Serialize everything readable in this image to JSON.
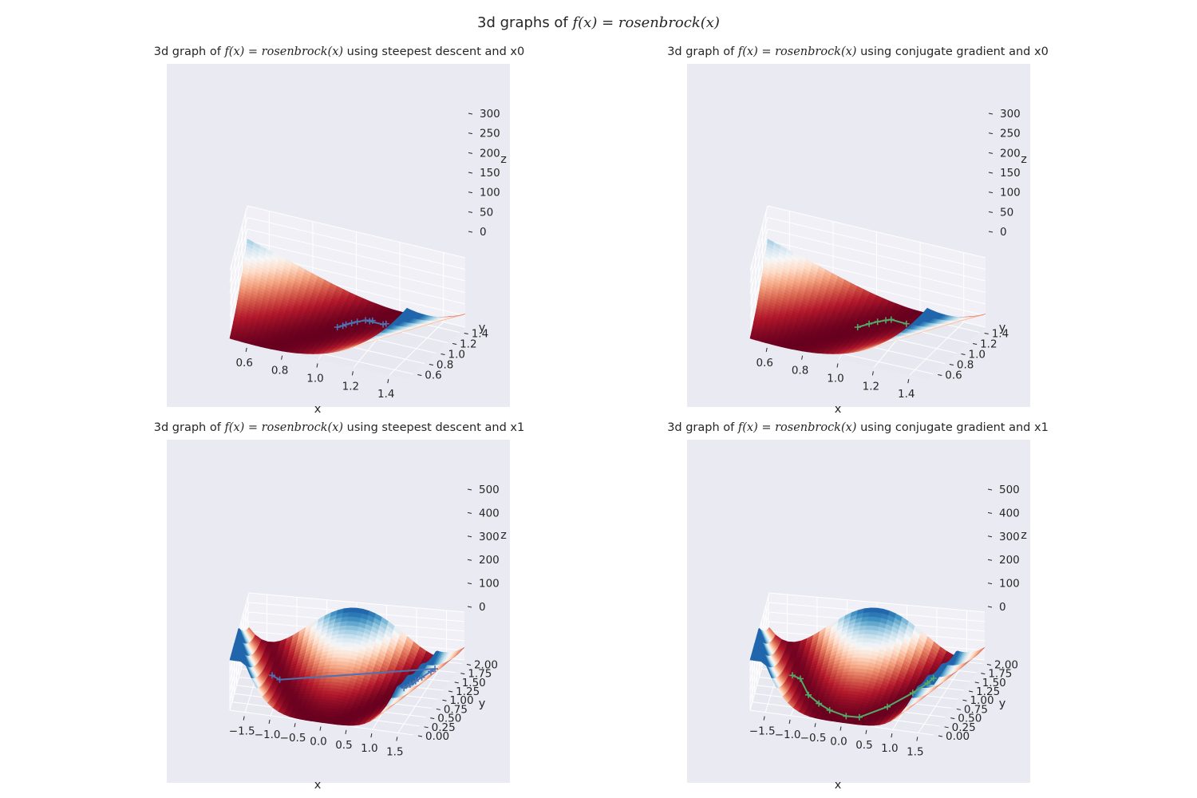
{
  "figure": {
    "title_prefix": "3d graphs of ",
    "title_math": "f(x) = rosenbrock(x)"
  },
  "chart_data": [
    {
      "type": "surface3d",
      "title_prefix": "3d graph of ",
      "title_math": "f(x) = rosenbrock(x)",
      "title_suffix": " using steepest descent and x0",
      "xlabel": "x",
      "ylabel": "y",
      "zlabel": "z",
      "xlim": [
        0.5,
        1.5
      ],
      "ylim": [
        0.5,
        1.5
      ],
      "zlim": [
        0,
        300
      ],
      "xticks": [
        "0.6",
        "0.8",
        "1.0",
        "1.2",
        "1.4"
      ],
      "yticks": [
        "0.6",
        "0.8",
        "1.0",
        "1.2",
        "1.4"
      ],
      "zticks": [
        "0",
        "50",
        "100",
        "150",
        "200",
        "250",
        "300"
      ],
      "colormap": "RdBu",
      "path_color": "#4c72b0",
      "path": [
        [
          1.2,
          1.2
        ],
        [
          1.19,
          1.18
        ],
        [
          1.12,
          1.2
        ],
        [
          1.13,
          1.22
        ],
        [
          1.1,
          1.2
        ],
        [
          1.07,
          1.15
        ],
        [
          1.05,
          1.11
        ],
        [
          1.03,
          1.07
        ],
        [
          1.02,
          1.04
        ],
        [
          1.0,
          1.0
        ]
      ]
    },
    {
      "type": "surface3d",
      "title_prefix": "3d graph of ",
      "title_math": "f(x) = rosenbrock(x)",
      "title_suffix": " using conjugate gradient and x0",
      "xlabel": "x",
      "ylabel": "y",
      "zlabel": "z",
      "xlim": [
        0.5,
        1.5
      ],
      "ylim": [
        0.5,
        1.5
      ],
      "zlim": [
        0,
        300
      ],
      "xticks": [
        "0.6",
        "0.8",
        "1.0",
        "1.2",
        "1.4"
      ],
      "yticks": [
        "0.6",
        "0.8",
        "1.0",
        "1.2",
        "1.4"
      ],
      "zticks": [
        "0",
        "50",
        "100",
        "150",
        "200",
        "250",
        "300"
      ],
      "colormap": "RdBu",
      "path_color": "#55a868",
      "path": [
        [
          1.2,
          1.2
        ],
        [
          1.12,
          1.23
        ],
        [
          1.1,
          1.2
        ],
        [
          1.07,
          1.15
        ],
        [
          1.04,
          1.09
        ],
        [
          1.0,
          1.0
        ]
      ]
    },
    {
      "type": "surface3d",
      "title_prefix": "3d graph of ",
      "title_math": "f(x) = rosenbrock(x)",
      "title_suffix": " using steepest descent and x1",
      "xlabel": "x",
      "ylabel": "y",
      "zlabel": "z",
      "xlim": [
        -1.8,
        1.8
      ],
      "ylim": [
        0,
        2.1
      ],
      "zlim": [
        0,
        500
      ],
      "xticks": [
        "−1.5",
        "−1.0",
        "−0.5",
        "0.0",
        "0.5",
        "1.0",
        "1.5"
      ],
      "yticks": [
        "0.00",
        "0.25",
        "0.50",
        "0.75",
        "1.00",
        "1.25",
        "1.50",
        "1.75",
        "2.00"
      ],
      "zticks": [
        "0",
        "100",
        "200",
        "300",
        "400",
        "500"
      ],
      "colormap": "RdBu",
      "path_color": "#4c72b0",
      "path": [
        [
          -1.2,
          1.0
        ],
        [
          -1.05,
          0.95
        ],
        [
          1.5,
          1.6
        ],
        [
          1.45,
          1.55
        ],
        [
          1.35,
          1.4
        ],
        [
          1.28,
          1.3
        ],
        [
          1.22,
          1.2
        ],
        [
          1.15,
          1.1
        ]
      ]
    },
    {
      "type": "surface3d",
      "title_prefix": "3d graph of ",
      "title_math": "f(x) = rosenbrock(x)",
      "title_suffix": " using conjugate gradient and x1",
      "xlabel": "x",
      "ylabel": "y",
      "zlabel": "z",
      "xlim": [
        -1.8,
        1.8
      ],
      "ylim": [
        0,
        2.1
      ],
      "zlim": [
        0,
        500
      ],
      "xticks": [
        "−1.5",
        "−1.0",
        "−0.5",
        "0.0",
        "0.5",
        "1.0",
        "1.5"
      ],
      "yticks": [
        "0.00",
        "0.25",
        "0.50",
        "0.75",
        "1.00",
        "1.25",
        "1.50",
        "1.75",
        "2.00"
      ],
      "zticks": [
        "0",
        "100",
        "200",
        "300",
        "400",
        "500"
      ],
      "colormap": "RdBu",
      "path_color": "#55a868",
      "path": [
        [
          -1.2,
          1.0
        ],
        [
          -1.05,
          0.98
        ],
        [
          -0.8,
          0.55
        ],
        [
          -0.55,
          0.35
        ],
        [
          -0.3,
          0.2
        ],
        [
          0.05,
          0.1
        ],
        [
          0.3,
          0.12
        ],
        [
          0.7,
          0.5
        ],
        [
          1.0,
          0.95
        ],
        [
          1.15,
          1.25
        ],
        [
          1.2,
          1.4
        ]
      ]
    }
  ]
}
